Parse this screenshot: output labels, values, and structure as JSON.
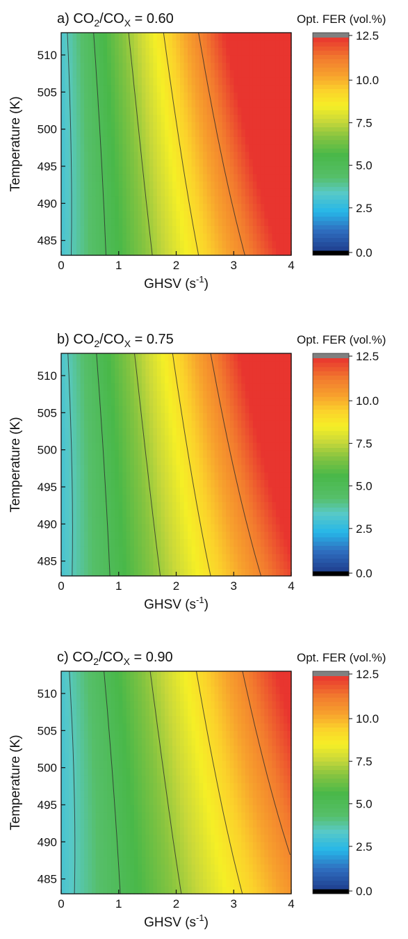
{
  "colorbar": {
    "title": "Opt. FER (vol.%)",
    "range": [
      0,
      12.5
    ],
    "ticks": [
      "0.0",
      "2.5",
      "5.0",
      "7.5",
      "10.0",
      "12.5"
    ],
    "tick_values": [
      0,
      2.5,
      5,
      7.5,
      10,
      12.5
    ],
    "stops": [
      {
        "v": 0.0,
        "color": "#1f3f8f"
      },
      {
        "v": 1.2,
        "color": "#2f6fc0"
      },
      {
        "v": 2.3,
        "color": "#27b7e8"
      },
      {
        "v": 3.4,
        "color": "#58c9c6"
      },
      {
        "v": 4.3,
        "color": "#56bf6a"
      },
      {
        "v": 5.6,
        "color": "#49b849"
      },
      {
        "v": 6.7,
        "color": "#86c440"
      },
      {
        "v": 7.6,
        "color": "#c8d83a"
      },
      {
        "v": 8.5,
        "color": "#f5ef26"
      },
      {
        "v": 9.4,
        "color": "#fbd22b"
      },
      {
        "v": 10.3,
        "color": "#f7a12d"
      },
      {
        "v": 11.3,
        "color": "#f27b2e"
      },
      {
        "v": 12.5,
        "color": "#e8352f"
      }
    ],
    "under_color": "#000000",
    "over_color": "#808080"
  },
  "chart_data": [
    {
      "type": "heatmap",
      "title_prefix": "a) CO",
      "title_mid": "/CO",
      "title_sub1": "2",
      "title_sub2": "X",
      "title_value": " = 0.60",
      "xlabel": "GHSV (s",
      "xlabel_exp": "-1",
      "ylabel": "Temperature (K)",
      "x_ticks": [
        "0",
        "1",
        "2",
        "3",
        "4"
      ],
      "y_ticks": [
        "485",
        "490",
        "495",
        "500",
        "505",
        "510"
      ],
      "xlim": [
        0,
        4
      ],
      "ylim": [
        483,
        513
      ],
      "base": 3.0,
      "slope": 2.5,
      "tcoef": 0.011,
      "tcenter": 483,
      "contour_levels": [
        3.5,
        5.0,
        7.0,
        9.0,
        11.0
      ]
    },
    {
      "type": "heatmap",
      "title_prefix": "b) CO",
      "title_mid": "/CO",
      "title_sub1": "2",
      "title_sub2": "X",
      "title_value": " = 0.75",
      "xlabel": "GHSV (s",
      "xlabel_exp": "-1",
      "ylabel": "Temperature (K)",
      "x_ticks": [
        "0",
        "1",
        "2",
        "3",
        "4"
      ],
      "y_ticks": [
        "485",
        "490",
        "495",
        "500",
        "505",
        "510"
      ],
      "xlim": [
        0,
        4
      ],
      "ylim": [
        483,
        513
      ],
      "base": 3.0,
      "slope": 2.3,
      "tcoef": 0.011,
      "tcenter": 483,
      "contour_levels": [
        3.5,
        5.0,
        7.0,
        9.0,
        11.0
      ]
    },
    {
      "type": "heatmap",
      "title_prefix": "c) CO",
      "title_mid": "/CO",
      "title_sub1": "2",
      "title_sub2": "X",
      "title_value": " = 0.90",
      "xlabel": "GHSV (s",
      "xlabel_exp": "-1",
      "ylabel": "Temperature (K)",
      "x_ticks": [
        "0",
        "1",
        "2",
        "3",
        "4"
      ],
      "y_ticks": [
        "485",
        "490",
        "495",
        "500",
        "505",
        "510"
      ],
      "xlim": [
        0,
        4
      ],
      "ylim": [
        483,
        513
      ],
      "base": 3.0,
      "slope": 1.9,
      "tcoef": 0.011,
      "tcenter": 483,
      "contour_levels": [
        3.5,
        5.0,
        7.0,
        9.0,
        11.0
      ]
    }
  ]
}
